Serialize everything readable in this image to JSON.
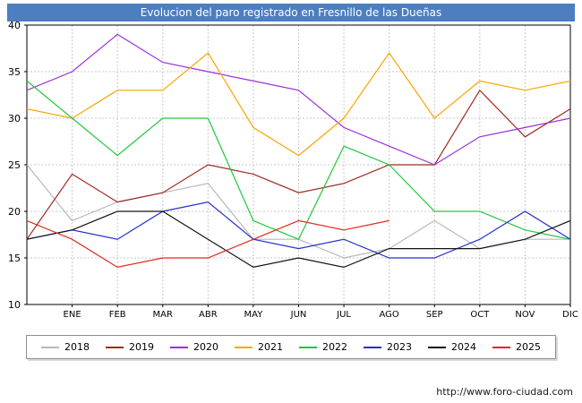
{
  "footer": {
    "url": "http://www.foro-ciudad.com"
  },
  "chart_data": {
    "type": "line",
    "title": "Evolucion del paro registrado en Fresnillo de las Dueñas",
    "title_bar_color": "#4d7ec0",
    "xlabel": "",
    "ylabel": "",
    "ylim": [
      10,
      40
    ],
    "yticks": [
      10,
      15,
      20,
      25,
      30,
      35,
      40
    ],
    "grid": "dashed",
    "legend_position": "bottom",
    "x_first_point_unlabeled": true,
    "categories": [
      "ENE",
      "FEB",
      "MAR",
      "ABR",
      "MAY",
      "JUN",
      "JUL",
      "AGO",
      "SEP",
      "OCT",
      "NOV",
      "DIC"
    ],
    "series": [
      {
        "name": "2018",
        "color": "#b8b8b8",
        "values": [
          25,
          19,
          21,
          22,
          23,
          17,
          17,
          15,
          16,
          19,
          16,
          17,
          17
        ]
      },
      {
        "name": "2019",
        "color": "#9e2a20",
        "values": [
          17,
          24,
          21,
          22,
          25,
          24,
          22,
          23,
          25,
          25,
          33,
          28,
          31
        ]
      },
      {
        "name": "2020",
        "color": "#9b30d9",
        "values": [
          33,
          35,
          39,
          36,
          35,
          34,
          33,
          29,
          27,
          25,
          28,
          29,
          30
        ]
      },
      {
        "name": "2021",
        "color": "#f7a600",
        "values": [
          31,
          30,
          33,
          33,
          37,
          29,
          26,
          30,
          37,
          30,
          34,
          33,
          34
        ]
      },
      {
        "name": "2022",
        "color": "#1fc93c",
        "values": [
          34,
          30,
          26,
          30,
          30,
          19,
          17,
          27,
          25,
          20,
          20,
          18,
          17
        ]
      },
      {
        "name": "2023",
        "color": "#2431c8",
        "values": [
          17,
          18,
          17,
          20,
          21,
          17,
          16,
          17,
          15,
          15,
          17,
          20,
          17
        ]
      },
      {
        "name": "2024",
        "color": "#141414",
        "values": [
          17,
          18,
          20,
          20,
          17,
          14,
          15,
          14,
          16,
          16,
          16,
          17,
          19
        ]
      },
      {
        "name": "2025",
        "color": "#e02a1e",
        "values": [
          19,
          17,
          14,
          15,
          15,
          17,
          19,
          18,
          19
        ]
      }
    ]
  }
}
